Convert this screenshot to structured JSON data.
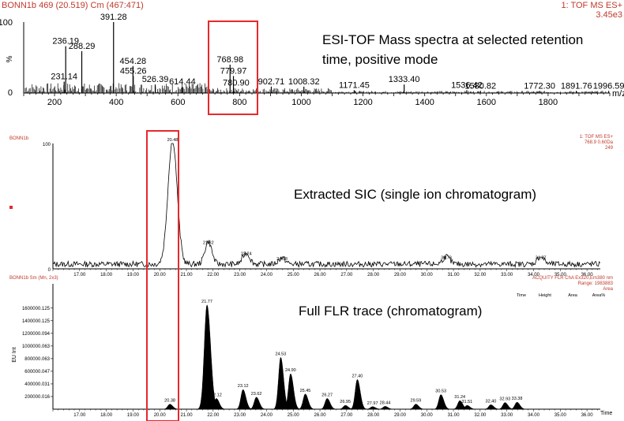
{
  "panel1": {
    "title_left": "BONN1b 469 (20.519) Cm (467:471)",
    "title_right": "1: TOF MS ES+",
    "intensity": "3.45e3",
    "y_top": "100",
    "y_zero": "0",
    "y_unit": "%",
    "x_unit": "m/z",
    "annotation_line1": "ESI-TOF Mass spectra at selected retention",
    "annotation_line2": "time, positive mode"
  },
  "panel2": {
    "title_left": "BONN1b",
    "info_line1": "1: TOF MS ES+",
    "info_line2": "768.9 0.60Da",
    "info_line3": "249",
    "y_top": "100",
    "y_zero": "0",
    "annotation": "Extracted SIC (single ion chromatogram)"
  },
  "panel3": {
    "title_left": "BONN1b Sm (Mn, 2x3)",
    "info_line1": "ACQUITY FLR ChA Ex320,Em380 nm",
    "info_line2": "Range: 1983883",
    "info_line3": "Area",
    "y_label": "EU Int",
    "x_unit": "Time",
    "annotation": "Full FLR trace (chromatogram)",
    "table_header": [
      "Time",
      "Height",
      "Area",
      "Area%"
    ]
  },
  "colors": {
    "highlight": "#e8282b",
    "header_text": "#c0392b",
    "axis": "#000000",
    "peak_fill": "#000000"
  },
  "chart_data": [
    {
      "type": "bar",
      "title": "BONN1b 469 (20.519) Cm (467:471)",
      "xlabel": "m/z",
      "ylabel": "%",
      "xlim": [
        100,
        2000
      ],
      "ylim": [
        0,
        100
      ],
      "x_ticks": [
        200,
        400,
        600,
        800,
        1000,
        1200,
        1400,
        1600,
        1800
      ],
      "peaks": [
        {
          "mz": 231.14,
          "label": "231.14",
          "value": 16
        },
        {
          "mz": 236.19,
          "label": "236.19",
          "value": 66
        },
        {
          "mz": 288.29,
          "label": "288.29",
          "value": 59
        },
        {
          "mz": 391.28,
          "label": "391.28",
          "value": 100
        },
        {
          "mz": 454.28,
          "label": "454.28",
          "value": 38
        },
        {
          "mz": 455.26,
          "label": "455.26",
          "value": 24
        },
        {
          "mz": 526.39,
          "label": "526.39",
          "value": 12
        },
        {
          "mz": 614.44,
          "label": "614.44",
          "value": 9
        },
        {
          "mz": 768.98,
          "label": "768.98",
          "value": 40
        },
        {
          "mz": 779.97,
          "label": "779.97",
          "value": 24
        },
        {
          "mz": 780.9,
          "label": "780.90",
          "value": 7
        },
        {
          "mz": 902.71,
          "label": "902.71",
          "value": 9
        },
        {
          "mz": 1008.32,
          "label": "1008.32",
          "value": 9
        },
        {
          "mz": 1171.45,
          "label": "1171.45",
          "value": 4
        },
        {
          "mz": 1333.4,
          "label": "1333.40",
          "value": 12
        },
        {
          "mz": 1536.42,
          "label": "1536.42",
          "value": 4
        },
        {
          "mz": 1580.82,
          "label": "1580.82",
          "value": 3
        },
        {
          "mz": 1772.3,
          "label": "1772.30",
          "value": 3
        },
        {
          "mz": 1891.76,
          "label": "1891.76",
          "value": 3
        },
        {
          "mz": 1996.59,
          "label": "1996.59",
          "value": 3
        }
      ]
    },
    {
      "type": "line",
      "title": "BONN1b",
      "xlabel": "",
      "ylabel": "",
      "xlim": [
        16.0,
        36.5
      ],
      "ylim": [
        0,
        100
      ],
      "x_ticks": [
        "17.00",
        "18.00",
        "19.00",
        "20.00",
        "21.00",
        "22.00",
        "23.00",
        "24.00",
        "25.00",
        "26.00",
        "27.00",
        "28.00",
        "29.00",
        "30.00",
        "31.00",
        "32.00",
        "33.00",
        "34.00",
        "35.00",
        "36.00"
      ],
      "peaks": [
        {
          "time": 20.48,
          "label": "20.48",
          "value": 100
        },
        {
          "time": 21.82,
          "label": "21.82",
          "value": 18
        },
        {
          "time": 23.24,
          "label": "23.24",
          "value": 9
        },
        {
          "time": 24.58,
          "label": "24.58",
          "value": 5
        },
        {
          "time": 30.73,
          "label": "30.73",
          "value": 6
        },
        {
          "time": 34.27,
          "label": "34.27",
          "value": 6
        }
      ]
    },
    {
      "type": "area",
      "title": "BONN1b Sm (Mn, 2x3)",
      "xlabel": "Time",
      "ylabel": "EU Int",
      "xlim": [
        16.0,
        36.5
      ],
      "ylim": [
        0,
        1983883
      ],
      "y_ticks": [
        "200000.016",
        "400000.031",
        "600000.047",
        "800000.063",
        "1000000.063",
        "1200000.094",
        "1400000.125",
        "1600000.125"
      ],
      "x_ticks": [
        "17.00",
        "18.00",
        "19.00",
        "20.00",
        "21.00",
        "22.00",
        "23.00",
        "24.00",
        "25.00",
        "26.00",
        "27.00",
        "28.00",
        "29.00",
        "30.00",
        "31.00",
        "32.00",
        "33.00",
        "34.00",
        "35.00",
        "36.00"
      ],
      "peaks": [
        {
          "time": 20.38,
          "label": "20.38",
          "value": 79000
        },
        {
          "time": 21.77,
          "label": "21.77",
          "value": 1650000
        },
        {
          "time": 22.12,
          "label": "22.12",
          "value": 170000
        },
        {
          "time": 23.12,
          "label": "23.12",
          "value": 310000
        },
        {
          "time": 23.62,
          "label": "23.62",
          "value": 190000
        },
        {
          "time": 24.53,
          "label": "24.53",
          "value": 820000
        },
        {
          "time": 24.9,
          "label": "24.90",
          "value": 560000
        },
        {
          "time": 25.45,
          "label": "25.45",
          "value": 240000
        },
        {
          "time": 26.27,
          "label": "26.27",
          "value": 170000
        },
        {
          "time": 26.95,
          "label": "26.95",
          "value": 60000
        },
        {
          "time": 27.4,
          "label": "27.40",
          "value": 470000
        },
        {
          "time": 27.97,
          "label": "27.97",
          "value": 40000
        },
        {
          "time": 28.44,
          "label": "28.44",
          "value": 45000
        },
        {
          "time": 29.59,
          "label": "29.59",
          "value": 80000
        },
        {
          "time": 30.53,
          "label": "30.53",
          "value": 230000
        },
        {
          "time": 31.24,
          "label": "31.24",
          "value": 135000
        },
        {
          "time": 31.51,
          "label": "31.51",
          "value": 60000
        },
        {
          "time": 32.4,
          "label": "32.40",
          "value": 70000
        },
        {
          "time": 32.93,
          "label": "32.93",
          "value": 105000
        },
        {
          "time": 33.38,
          "label": "33.38",
          "value": 110000
        }
      ]
    }
  ]
}
